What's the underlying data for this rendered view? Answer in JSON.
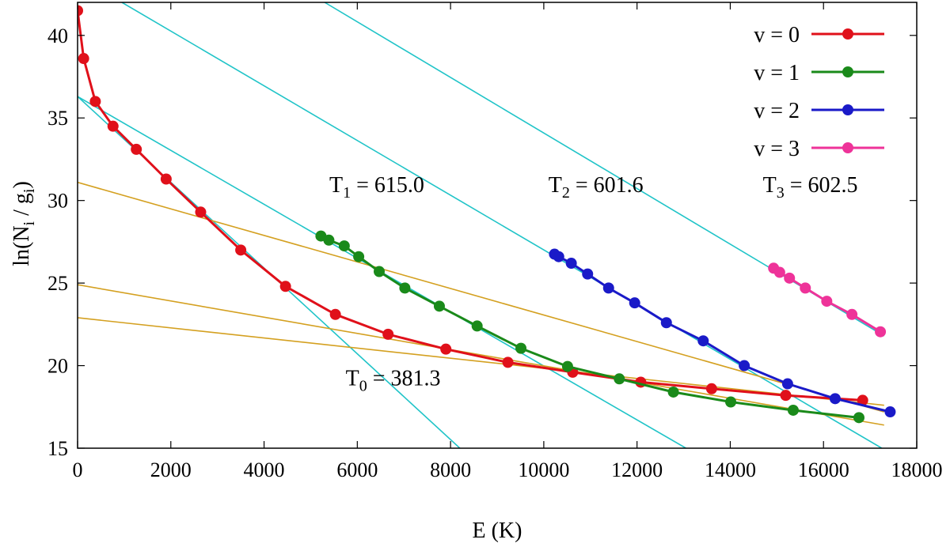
{
  "chart_data": {
    "type": "line",
    "title": "",
    "xlabel": "E (K)",
    "ylabel": {
      "main": "ln(N",
      "sub1": "i",
      "mid": " / g",
      "sub2": "i",
      "end": ")"
    },
    "xlim": [
      0,
      18000
    ],
    "ylim": [
      15,
      42
    ],
    "xticks": [
      0,
      2000,
      4000,
      6000,
      8000,
      10000,
      12000,
      14000,
      16000,
      18000
    ],
    "yticks": [
      15,
      20,
      25,
      30,
      35,
      40
    ],
    "grid": false,
    "legend_position": "top-right",
    "series": [
      {
        "name": "v = 0",
        "color": "#e0101a",
        "points": [
          [
            0,
            41.5
          ],
          [
            130,
            38.6
          ],
          [
            380,
            36.0
          ],
          [
            760,
            34.5
          ],
          [
            1260,
            33.1
          ],
          [
            1900,
            31.3
          ],
          [
            2640,
            29.3
          ],
          [
            3500,
            27.0
          ],
          [
            4460,
            24.8
          ],
          [
            5530,
            23.1
          ],
          [
            6660,
            21.9
          ],
          [
            7900,
            21.0
          ],
          [
            9230,
            20.2
          ],
          [
            10620,
            19.6
          ],
          [
            12080,
            19.0
          ],
          [
            13600,
            18.6
          ],
          [
            15190,
            18.2
          ],
          [
            16840,
            17.9
          ]
        ]
      },
      {
        "name": "v = 1",
        "color": "#1a8a1a",
        "points": [
          [
            5220,
            27.85
          ],
          [
            5390,
            27.6
          ],
          [
            5720,
            27.25
          ],
          [
            6030,
            26.6
          ],
          [
            6470,
            25.7
          ],
          [
            7020,
            24.7
          ],
          [
            7760,
            23.6
          ],
          [
            8570,
            22.4
          ],
          [
            9510,
            21.05
          ],
          [
            10510,
            19.95
          ],
          [
            11620,
            19.2
          ],
          [
            12780,
            18.4
          ],
          [
            14010,
            17.8
          ],
          [
            15350,
            17.3
          ],
          [
            16760,
            16.85
          ]
        ]
      },
      {
        "name": "v = 2",
        "color": "#1a1ac8",
        "points": [
          [
            10230,
            26.75
          ],
          [
            10320,
            26.6
          ],
          [
            10590,
            26.2
          ],
          [
            10940,
            25.55
          ],
          [
            11390,
            24.7
          ],
          [
            11950,
            23.8
          ],
          [
            12630,
            22.6
          ],
          [
            13420,
            21.5
          ],
          [
            14300,
            20.0
          ],
          [
            15230,
            18.9
          ],
          [
            16250,
            18.0
          ],
          [
            17430,
            17.2
          ]
        ]
      },
      {
        "name": "v = 3",
        "color": "#ee3399",
        "points": [
          [
            14930,
            25.9
          ],
          [
            15060,
            25.65
          ],
          [
            15270,
            25.3
          ],
          [
            15610,
            24.7
          ],
          [
            16070,
            23.9
          ],
          [
            16610,
            23.1
          ],
          [
            17220,
            22.05
          ]
        ]
      }
    ],
    "fit_lines": [
      {
        "name": "fit-cyan-1",
        "color": "#20c4c8",
        "points": [
          [
            0,
            36.3
          ],
          [
            8200,
            15.0
          ]
        ]
      },
      {
        "name": "fit-cyan-2",
        "color": "#20c4c8",
        "points": [
          [
            0,
            36.3
          ],
          [
            13050,
            15.0
          ]
        ]
      },
      {
        "name": "fit-cyan-3",
        "color": "#20c4c8",
        "points": [
          [
            950,
            42.0
          ],
          [
            17250,
            15.0
          ]
        ]
      },
      {
        "name": "fit-cyan-4",
        "color": "#20c4c8",
        "points": [
          [
            5300,
            42.0
          ],
          [
            17300,
            21.8
          ]
        ]
      },
      {
        "name": "fit-orange-1",
        "color": "#d4a020",
        "points": [
          [
            0,
            31.1
          ],
          [
            17300,
            17.2
          ]
        ]
      },
      {
        "name": "fit-orange-2",
        "color": "#d4a020",
        "points": [
          [
            0,
            24.9
          ],
          [
            17300,
            16.4
          ]
        ]
      },
      {
        "name": "fit-orange-3",
        "color": "#d4a020",
        "points": [
          [
            0,
            22.9
          ],
          [
            17300,
            17.6
          ]
        ]
      }
    ],
    "annotations": [
      {
        "name": "annot-t1",
        "main": "T",
        "sub": "1",
        "rest": " = 615.0",
        "x": 5400,
        "y": 30.5
      },
      {
        "name": "annot-t2",
        "main": "T",
        "sub": "2",
        "rest": " = 601.6",
        "x": 10100,
        "y": 30.5
      },
      {
        "name": "annot-t3",
        "main": "T",
        "sub": "3",
        "rest": " = 602.5",
        "x": 14700,
        "y": 30.5
      },
      {
        "name": "annot-t0",
        "main": "T",
        "sub": "0",
        "rest": " = 381.3",
        "x": 5750,
        "y": 18.8
      }
    ]
  }
}
